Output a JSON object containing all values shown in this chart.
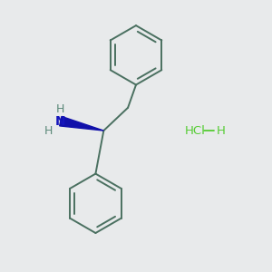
{
  "background_color": "#e8eaeb",
  "bond_color": "#4a7060",
  "nitrogen_color": "#1515bb",
  "nh_color": "#5a8878",
  "hcl_color": "#55cc33",
  "bond_width": 1.4,
  "wedge_color": "#1010aa",
  "figsize": [
    3.0,
    3.0
  ],
  "dpi": 100,
  "xlim": [
    0,
    10
  ],
  "ylim": [
    0,
    10
  ]
}
